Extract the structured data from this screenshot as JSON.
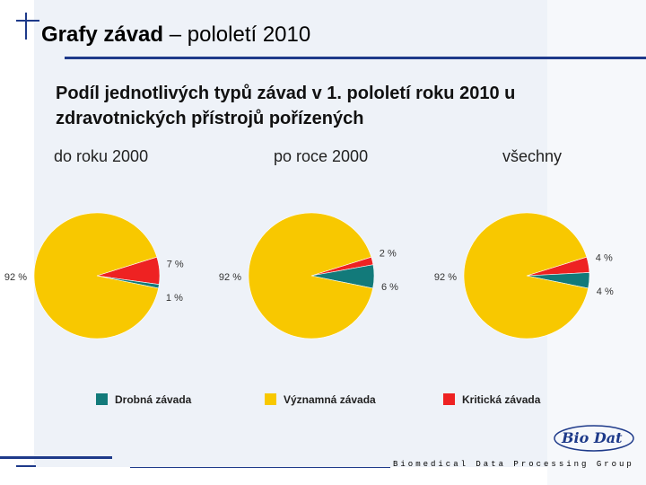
{
  "header": {
    "title_bold": "Grafy závad",
    "title_rest": " – pololetí 2010"
  },
  "subtitle": "Podíl jednotlivých typů závad v 1. pololetí roku 2010 u zdravotnických přístrojů pořízených",
  "footer": "Biomedical Data Processing Group",
  "logo": {
    "text": "Bio Dat"
  },
  "colors": {
    "drobna": "#127a7a",
    "vyznamna": "#f8c800",
    "kriticka": "#ee2222",
    "accent": "#1e3a8a"
  },
  "chart_data": {
    "type": "pie",
    "legend": [
      {
        "label": "Drobná závada",
        "color": "#127a7a"
      },
      {
        "label": "Významná závada",
        "color": "#f8c800"
      },
      {
        "label": "Kritická závada",
        "color": "#ee2222"
      }
    ],
    "charts": [
      {
        "title": "do roku 2000",
        "slices": [
          {
            "name": "Kritická závada",
            "value": 7,
            "label": "7 %"
          },
          {
            "name": "Drobná závada",
            "value": 1,
            "label": "1 %"
          },
          {
            "name": "Významná závada",
            "value": 92,
            "label": "92 %"
          }
        ]
      },
      {
        "title": "po roce 2000",
        "slices": [
          {
            "name": "Kritická závada",
            "value": 2,
            "label": "2 %"
          },
          {
            "name": "Drobná závada",
            "value": 6,
            "label": "6 %"
          },
          {
            "name": "Významná závada",
            "value": 92,
            "label": "92 %"
          }
        ]
      },
      {
        "title": "všechny",
        "slices": [
          {
            "name": "Kritická závada",
            "value": 4,
            "label": "4 %"
          },
          {
            "name": "Drobná závada",
            "value": 4,
            "label": "4 %"
          },
          {
            "name": "Významná závada",
            "value": 92,
            "label": "92 %"
          }
        ]
      }
    ]
  }
}
